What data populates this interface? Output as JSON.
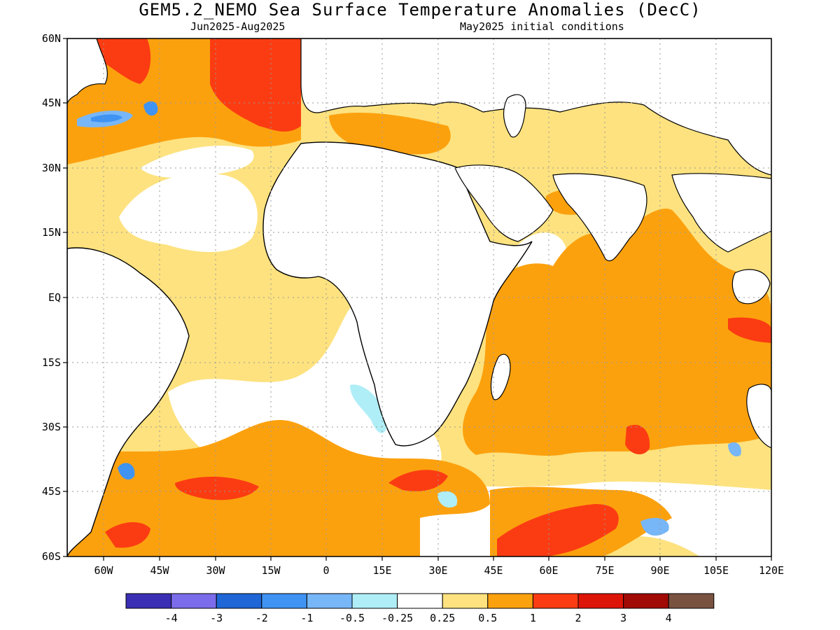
{
  "title": "GEM5.2_NEMO Sea Surface Temperature Anomalies (DecC)",
  "subtitle_left": "Jun2025-Aug2025",
  "subtitle_right": "May2025 initial conditions",
  "lat_labels": [
    "60N",
    "45N",
    "30N",
    "15N",
    "EQ",
    "15S",
    "30S",
    "45S",
    "60S"
  ],
  "lon_labels": [
    "60W",
    "45W",
    "30W",
    "15W",
    "0",
    "15E",
    "30E",
    "45E",
    "60E",
    "75E",
    "90E",
    "105E",
    "120E"
  ],
  "colorbar": {
    "colors": [
      "#3a2fb4",
      "#7a6cea",
      "#1f66d6",
      "#3f93f3",
      "#77b6f7",
      "#b0eef7",
      "#ffffff",
      "#fde27f",
      "#fca10e",
      "#fb3c12",
      "#dd1408",
      "#a10a05",
      "#7a5240"
    ],
    "labels": [
      "-4",
      "-3",
      "-2",
      "-1",
      "-0.5",
      "-0.25",
      "0.25",
      "0.5",
      "1",
      "2",
      "3",
      "4"
    ]
  }
}
